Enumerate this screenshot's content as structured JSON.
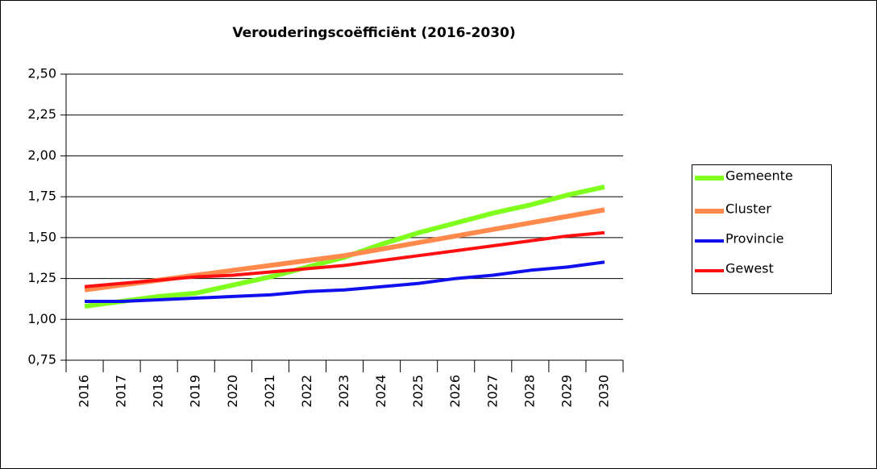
{
  "chart_data": {
    "type": "line",
    "title": "Verouderingscoëfficiënt (2016-2030)",
    "categories": [
      "2016",
      "2017",
      "2018",
      "2019",
      "2020",
      "2021",
      "2022",
      "2023",
      "2024",
      "2025",
      "2026",
      "2027",
      "2028",
      "2029",
      "2030"
    ],
    "series": [
      {
        "name": "Gemeente",
        "color": "#80ff1e",
        "values": [
          1.08,
          1.11,
          1.14,
          1.16,
          1.21,
          1.26,
          1.32,
          1.38,
          1.46,
          1.53,
          1.59,
          1.65,
          1.7,
          1.76,
          1.81
        ]
      },
      {
        "name": "Cluster",
        "color": "#ff8a4c",
        "values": [
          1.18,
          1.21,
          1.24,
          1.27,
          1.3,
          1.33,
          1.36,
          1.39,
          1.43,
          1.47,
          1.51,
          1.55,
          1.59,
          1.63,
          1.67
        ]
      },
      {
        "name": "Provincie",
        "color": "#1010ee",
        "values": [
          1.11,
          1.11,
          1.12,
          1.13,
          1.14,
          1.15,
          1.17,
          1.18,
          1.2,
          1.22,
          1.25,
          1.27,
          1.3,
          1.32,
          1.35
        ]
      },
      {
        "name": "Gewest",
        "color": "#ff1010",
        "values": [
          1.2,
          1.22,
          1.24,
          1.26,
          1.27,
          1.29,
          1.31,
          1.33,
          1.36,
          1.39,
          1.42,
          1.45,
          1.48,
          1.51,
          1.53
        ]
      }
    ],
    "ylim": [
      0.75,
      2.5
    ],
    "yticks": [
      {
        "value": 0.75,
        "label": "0,75"
      },
      {
        "value": 1,
        "label": "1,00"
      },
      {
        "value": 1.25,
        "label": "1,25"
      },
      {
        "value": 1.5,
        "label": "1,50"
      },
      {
        "value": 1.75,
        "label": "1,75"
      },
      {
        "value": 2,
        "label": "2,00"
      },
      {
        "value": 2.25,
        "label": "2,25"
      },
      {
        "value": 2.5,
        "label": "2,50"
      }
    ],
    "grid": true,
    "legend": "right"
  }
}
